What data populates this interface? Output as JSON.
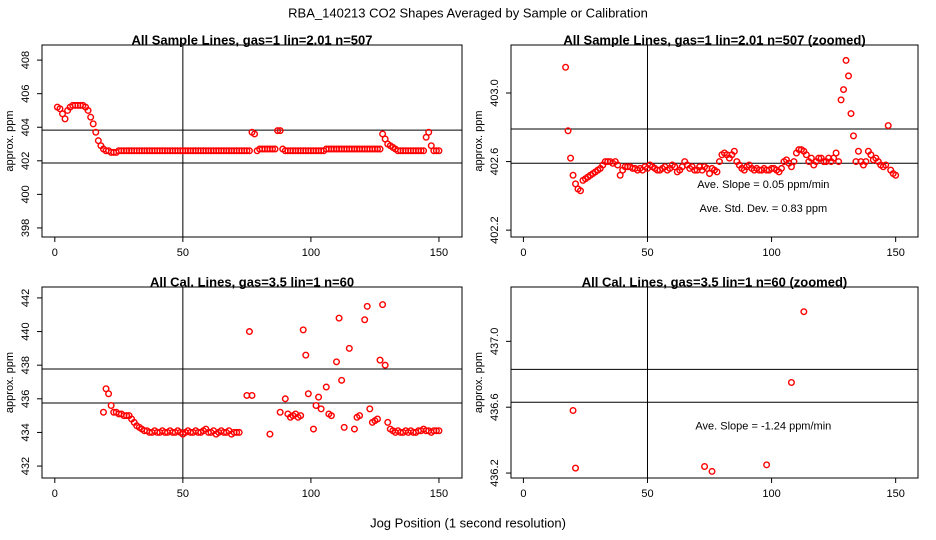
{
  "title": "RBA_140213  CO2 Shapes Averaged by Sample or Calibration",
  "xlabel": "Jog Position (1 second resolution)",
  "chart_data": [
    {
      "type": "scatter",
      "title": "All Sample Lines, gas=1 lin=2.01 n=507",
      "ylabel": "approx. ppm",
      "color": "#ff0000",
      "x": [
        1,
        2,
        3,
        4,
        5,
        6,
        7,
        8,
        9,
        10,
        11,
        12,
        13,
        14,
        15,
        16,
        17,
        18,
        19,
        20,
        21,
        22,
        23,
        24,
        25,
        26,
        27,
        28,
        29,
        30,
        31,
        32,
        33,
        34,
        35,
        36,
        37,
        38,
        39,
        40,
        41,
        42,
        43,
        44,
        45,
        46,
        47,
        48,
        49,
        50,
        51,
        52,
        53,
        54,
        55,
        56,
        57,
        58,
        59,
        60,
        61,
        62,
        63,
        64,
        65,
        66,
        67,
        68,
        69,
        70,
        71,
        72,
        73,
        74,
        75,
        76,
        77,
        78,
        79,
        80,
        81,
        82,
        83,
        84,
        85,
        86,
        87,
        88,
        89,
        90,
        91,
        92,
        93,
        94,
        95,
        96,
        97,
        98,
        99,
        100,
        101,
        102,
        103,
        104,
        105,
        106,
        107,
        108,
        109,
        110,
        111,
        112,
        113,
        114,
        115,
        116,
        117,
        118,
        119,
        120,
        121,
        122,
        123,
        124,
        125,
        126,
        127,
        128,
        129,
        130,
        131,
        132,
        133,
        134,
        135,
        136,
        137,
        138,
        139,
        140,
        141,
        142,
        143,
        144,
        145,
        146,
        147,
        148,
        149,
        150
      ],
      "values": [
        405.2,
        405.1,
        404.8,
        404.5,
        405.0,
        405.2,
        405.3,
        405.3,
        405.3,
        405.3,
        405.3,
        405.2,
        405.0,
        404.6,
        404.2,
        403.7,
        403.2,
        402.9,
        402.7,
        402.6,
        402.6,
        402.5,
        402.5,
        402.5,
        402.6,
        402.6,
        402.6,
        402.6,
        402.6,
        402.6,
        402.6,
        402.6,
        402.6,
        402.6,
        402.6,
        402.6,
        402.6,
        402.6,
        402.6,
        402.6,
        402.6,
        402.6,
        402.6,
        402.6,
        402.6,
        402.6,
        402.6,
        402.6,
        402.6,
        402.6,
        402.6,
        402.6,
        402.6,
        402.6,
        402.6,
        402.6,
        402.6,
        402.6,
        402.6,
        402.6,
        402.6,
        402.6,
        402.6,
        402.6,
        402.6,
        402.6,
        402.6,
        402.6,
        402.6,
        402.6,
        402.6,
        402.6,
        402.6,
        402.6,
        402.6,
        402.6,
        403.7,
        403.6,
        402.6,
        402.7,
        402.7,
        402.7,
        402.7,
        402.7,
        402.7,
        402.7,
        403.8,
        403.8,
        402.7,
        402.6,
        402.6,
        402.6,
        402.6,
        402.6,
        402.6,
        402.6,
        402.6,
        402.6,
        402.6,
        402.6,
        402.6,
        402.6,
        402.6,
        402.6,
        402.6,
        402.7,
        402.7,
        402.7,
        402.7,
        402.7,
        402.7,
        402.7,
        402.7,
        402.7,
        402.7,
        402.7,
        402.7,
        402.7,
        402.7,
        402.7,
        402.7,
        402.7,
        402.7,
        402.7,
        402.7,
        402.7,
        402.7,
        403.6,
        403.3,
        403.0,
        402.9,
        402.8,
        402.7,
        402.6,
        402.6,
        402.6,
        402.6,
        402.6,
        402.6,
        402.6,
        402.6,
        402.6,
        402.6,
        402.6,
        403.4,
        403.7,
        402.9,
        402.6,
        402.6,
        402.6
      ],
      "xlim": [
        -5,
        159
      ],
      "ylim": [
        397.46,
        408.9
      ],
      "xticks": [
        0,
        50,
        100,
        150
      ],
      "yticks": [
        398,
        400,
        402,
        404,
        406,
        408
      ],
      "hlines": [
        403.83,
        401.87
      ],
      "vlines": [
        50
      ],
      "annotations": []
    },
    {
      "type": "scatter",
      "title": "All Sample Lines, gas=1 lin=2.01 n=507 (zoomed)",
      "ylabel": "approx. ppm",
      "color": "#ff0000",
      "x": [
        17,
        18,
        19,
        20,
        21,
        22,
        23,
        24,
        25,
        26,
        27,
        28,
        29,
        30,
        31,
        32,
        33,
        34,
        35,
        36,
        37,
        38,
        39,
        40,
        41,
        42,
        43,
        44,
        45,
        46,
        47,
        48,
        49,
        50,
        51,
        52,
        53,
        54,
        55,
        56,
        57,
        58,
        59,
        60,
        61,
        62,
        63,
        64,
        65,
        66,
        67,
        68,
        69,
        70,
        71,
        72,
        73,
        74,
        75,
        76,
        77,
        78,
        79,
        80,
        81,
        82,
        83,
        84,
        85,
        86,
        87,
        88,
        89,
        90,
        91,
        92,
        93,
        94,
        95,
        96,
        97,
        98,
        99,
        100,
        101,
        102,
        103,
        104,
        105,
        106,
        107,
        108,
        109,
        110,
        111,
        112,
        113,
        114,
        115,
        116,
        117,
        118,
        119,
        120,
        121,
        122,
        123,
        124,
        125,
        126,
        127,
        128,
        129,
        130,
        131,
        132,
        133,
        134,
        135,
        136,
        137,
        138,
        139,
        140,
        141,
        142,
        143,
        144,
        145,
        146,
        147,
        148,
        149,
        150
      ],
      "values": [
        403.15,
        402.78,
        402.62,
        402.52,
        402.47,
        402.44,
        402.43,
        402.49,
        402.5,
        402.51,
        402.52,
        402.53,
        402.54,
        402.55,
        402.56,
        402.58,
        402.6,
        402.6,
        402.6,
        402.59,
        402.6,
        402.58,
        402.52,
        402.55,
        402.57,
        402.57,
        402.57,
        402.56,
        402.56,
        402.55,
        402.56,
        402.55,
        402.57,
        402.56,
        402.58,
        402.57,
        402.56,
        402.55,
        402.55,
        402.56,
        402.57,
        402.55,
        402.56,
        402.58,
        402.57,
        402.54,
        402.55,
        402.57,
        402.6,
        402.58,
        402.56,
        402.57,
        402.55,
        402.55,
        402.57,
        402.55,
        402.57,
        402.56,
        402.53,
        402.56,
        402.55,
        402.54,
        402.6,
        402.64,
        402.65,
        402.64,
        402.62,
        402.64,
        402.66,
        402.6,
        402.58,
        402.56,
        402.55,
        402.57,
        402.58,
        402.56,
        402.55,
        402.56,
        402.55,
        402.55,
        402.56,
        402.55,
        402.55,
        402.56,
        402.56,
        402.55,
        402.54,
        402.56,
        402.6,
        402.61,
        402.59,
        402.57,
        402.6,
        402.65,
        402.67,
        402.67,
        402.66,
        402.64,
        402.6,
        402.62,
        402.58,
        402.6,
        402.62,
        402.62,
        402.6,
        402.6,
        402.62,
        402.6,
        402.62,
        402.65,
        402.6,
        402.96,
        403.02,
        403.19,
        403.1,
        402.88,
        402.75,
        402.6,
        402.66,
        402.6,
        402.58,
        402.6,
        402.66,
        402.64,
        402.61,
        402.62,
        402.6,
        402.58,
        402.57,
        402.58,
        402.81,
        402.55,
        402.53,
        402.52
      ],
      "xlim": [
        -5,
        159
      ],
      "ylim": [
        402.16,
        403.28
      ],
      "xticks": [
        0,
        50,
        100,
        150
      ],
      "yticks": [
        402.2,
        402.6,
        {
          "value": 403,
          "label": "403.0"
        }
      ],
      "hlines": [
        402.79,
        402.59
      ],
      "vlines": [
        50
      ],
      "annotations": [
        "Ave. Slope =  0.05  ppm/min",
        "Ave. Std. Dev. =  0.83  ppm"
      ]
    },
    {
      "type": "scatter",
      "title": "All Cal. Lines, gas=3.5 lin=1 n=60",
      "ylabel": "approx. ppm",
      "color": "#ff0000",
      "x": [
        19,
        20,
        21,
        22,
        23,
        24,
        25,
        26,
        27,
        28,
        29,
        30,
        31,
        32,
        33,
        34,
        35,
        36,
        37,
        38,
        39,
        40,
        41,
        42,
        43,
        44,
        45,
        46,
        47,
        48,
        49,
        50,
        51,
        52,
        53,
        54,
        55,
        56,
        57,
        58,
        59,
        60,
        61,
        62,
        63,
        64,
        65,
        66,
        67,
        68,
        69,
        70,
        71,
        72,
        75,
        76,
        77,
        84,
        88,
        90,
        91,
        92,
        93,
        94,
        95,
        96,
        97,
        98,
        99,
        101,
        102,
        103,
        104,
        106,
        107,
        108,
        110,
        111,
        112,
        113,
        115,
        117,
        118,
        119,
        121,
        122,
        123,
        124,
        125,
        126,
        127,
        128,
        129,
        130,
        131,
        132,
        133,
        134,
        135,
        136,
        137,
        138,
        139,
        140,
        141,
        142,
        143,
        144,
        145,
        146,
        147,
        148,
        149,
        150
      ],
      "values": [
        435.2,
        436.6,
        436.3,
        435.6,
        435.2,
        435.2,
        435.1,
        435.1,
        435.0,
        435.0,
        435.0,
        434.8,
        434.6,
        434.4,
        434.3,
        434.2,
        434.1,
        434.1,
        434.0,
        434.0,
        434.1,
        434.0,
        434.0,
        434.1,
        434.0,
        434.0,
        434.1,
        434.0,
        434.0,
        434.1,
        434.0,
        433.9,
        434.0,
        434.1,
        434.0,
        434.0,
        434.1,
        434.0,
        434.0,
        434.1,
        434.2,
        434.0,
        434.0,
        434.1,
        433.9,
        434.0,
        434.1,
        434.0,
        434.0,
        434.1,
        433.9,
        434.0,
        434.0,
        434.0,
        436.2,
        440.0,
        436.2,
        433.9,
        435.2,
        436.0,
        435.1,
        434.9,
        435.0,
        435.1,
        434.9,
        435.0,
        440.1,
        438.6,
        436.3,
        434.2,
        435.6,
        436.1,
        435.4,
        436.7,
        435.1,
        435.0,
        438.2,
        440.8,
        437.1,
        434.3,
        439.0,
        434.2,
        434.9,
        435.0,
        440.7,
        441.5,
        435.4,
        434.6,
        434.7,
        434.8,
        438.3,
        441.6,
        438.0,
        434.6,
        434.2,
        434.1,
        434.0,
        434.1,
        434.0,
        434.0,
        434.1,
        434.0,
        434.1,
        434.0,
        434.0,
        434.1,
        434.1,
        434.2,
        434.1,
        434.1,
        434.0,
        434.1,
        434.1,
        434.1
      ],
      "xlim": [
        -5,
        159
      ],
      "ylim": [
        431.29,
        442.65
      ],
      "xticks": [
        0,
        50,
        100,
        150
      ],
      "yticks": [
        432,
        434,
        436,
        438,
        440,
        442
      ],
      "hlines": [
        437.77,
        435.75
      ],
      "vlines": [
        50
      ],
      "annotations": []
    },
    {
      "type": "scatter",
      "title": "All Cal. Lines, gas=3.5 lin=1 n=60 (zoomed)",
      "ylabel": "approx. ppm",
      "color": "#ff0000",
      "x": [
        20,
        21,
        73,
        76,
        98,
        108,
        113
      ],
      "values": [
        436.58,
        436.23,
        436.24,
        436.21,
        436.25,
        436.75,
        437.18
      ],
      "xlim": [
        -5,
        159
      ],
      "ylim": [
        436.17,
        437.33
      ],
      "xticks": [
        0,
        50,
        100,
        150
      ],
      "yticks": [
        436.2,
        436.6,
        {
          "value": 437,
          "label": "437.0"
        }
      ],
      "hlines": [
        436.83,
        436.63
      ],
      "vlines": [
        50
      ],
      "annotations": [
        "Ave. Slope =  -1.24  ppm/min"
      ]
    }
  ]
}
